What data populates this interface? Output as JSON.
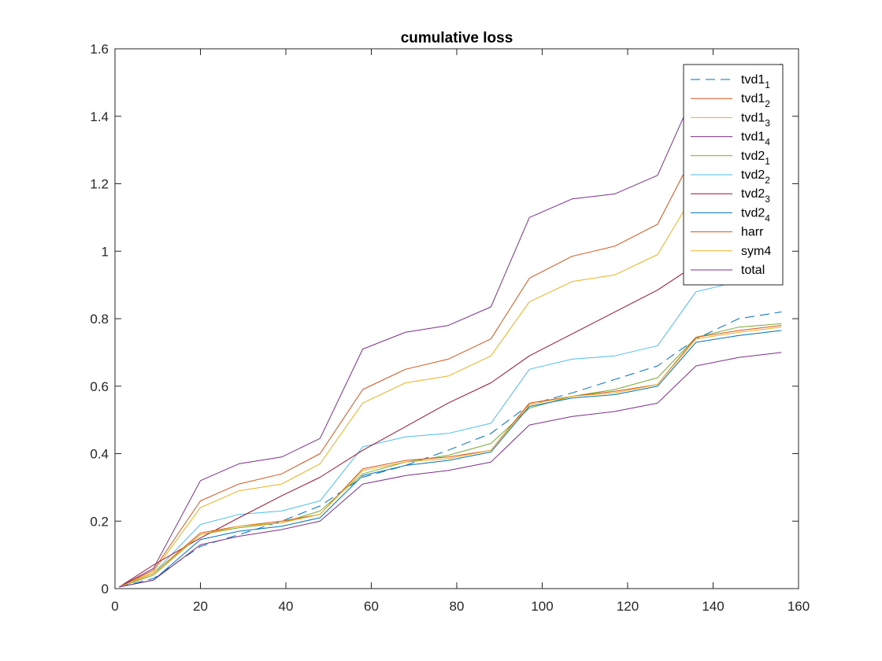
{
  "chart_data": {
    "type": "line",
    "title": "cumulative loss",
    "xlabel": "",
    "ylabel": "",
    "xlim": [
      0,
      160
    ],
    "ylim": [
      0,
      1.6
    ],
    "xticks": [
      0,
      20,
      40,
      60,
      80,
      100,
      120,
      140,
      160
    ],
    "yticks": [
      0,
      0.2,
      0.4,
      0.6,
      0.8,
      1,
      1.2,
      1.4,
      1.6
    ],
    "xtick_labels": [
      "0",
      "20",
      "40",
      "60",
      "80",
      "100",
      "120",
      "140",
      "160"
    ],
    "ytick_labels": [
      "0",
      "0.2",
      "0.4",
      "0.6",
      "0.8",
      "1",
      "1.2",
      "1.4",
      "1.6"
    ],
    "grid": false,
    "legend_position": "top-right",
    "x": [
      1,
      9,
      20,
      29,
      39,
      48,
      58,
      68,
      78,
      88,
      97,
      107,
      117,
      127,
      136,
      146,
      156
    ],
    "series": [
      {
        "label": "tvd1",
        "subscript": "1",
        "color": "#0072BD",
        "dashed": true,
        "values": [
          0.005,
          0.03,
          0.125,
          0.16,
          0.2,
          0.245,
          0.33,
          0.365,
          0.41,
          0.46,
          0.545,
          0.58,
          0.62,
          0.66,
          0.74,
          0.8,
          0.82
        ]
      },
      {
        "label": "tvd1",
        "subscript": "2",
        "color": "#D95319",
        "dashed": false,
        "values": [
          0.005,
          0.055,
          0.26,
          0.31,
          0.34,
          0.4,
          0.59,
          0.65,
          0.68,
          0.74,
          0.92,
          0.985,
          1.015,
          1.08,
          1.3,
          1.33,
          1.36
        ]
      },
      {
        "label": "tvd1",
        "subscript": "3",
        "color": "#EDB120",
        "dashed": false,
        "values": [
          0.005,
          0.05,
          0.24,
          0.29,
          0.31,
          0.37,
          0.55,
          0.61,
          0.63,
          0.69,
          0.85,
          0.91,
          0.93,
          0.99,
          1.18,
          1.21,
          1.24
        ]
      },
      {
        "label": "tvd1",
        "subscript": "4",
        "color": "#7E2F8E",
        "dashed": false,
        "values": [
          0.005,
          0.06,
          0.32,
          0.37,
          0.39,
          0.445,
          0.71,
          0.76,
          0.78,
          0.835,
          1.1,
          1.155,
          1.17,
          1.225,
          1.48,
          1.52,
          1.555
        ]
      },
      {
        "label": "tvd2",
        "subscript": "1",
        "color": "#77AC30",
        "dashed": false,
        "values": [
          0.005,
          0.04,
          0.16,
          0.18,
          0.195,
          0.23,
          0.34,
          0.375,
          0.395,
          0.43,
          0.535,
          0.57,
          0.59,
          0.625,
          0.745,
          0.775,
          0.785
        ]
      },
      {
        "label": "tvd2",
        "subscript": "2",
        "color": "#4DBEEE",
        "dashed": false,
        "values": [
          0.005,
          0.045,
          0.19,
          0.22,
          0.23,
          0.26,
          0.42,
          0.45,
          0.46,
          0.49,
          0.65,
          0.68,
          0.69,
          0.72,
          0.88,
          0.91,
          0.93
        ]
      },
      {
        "label": "tvd2",
        "subscript": "3",
        "color": "#A2142F",
        "dashed": false,
        "values": [
          0.005,
          0.07,
          0.15,
          0.21,
          0.275,
          0.33,
          0.41,
          0.48,
          0.55,
          0.61,
          0.69,
          0.755,
          0.82,
          0.885,
          0.96,
          1.03,
          1.1
        ]
      },
      {
        "label": "tvd2",
        "subscript": "4",
        "color": "#0072BD",
        "dashed": false,
        "values": [
          0.005,
          0.025,
          0.145,
          0.17,
          0.185,
          0.21,
          0.335,
          0.365,
          0.38,
          0.405,
          0.54,
          0.565,
          0.575,
          0.6,
          0.73,
          0.75,
          0.765
        ]
      },
      {
        "label": "harr",
        "subscript": "",
        "color": "#D95319",
        "dashed": false,
        "values": [
          0.005,
          0.045,
          0.165,
          0.185,
          0.2,
          0.22,
          0.355,
          0.38,
          0.39,
          0.41,
          0.55,
          0.57,
          0.585,
          0.605,
          0.745,
          0.765,
          0.78
        ]
      },
      {
        "label": "sym4",
        "subscript": "",
        "color": "#EDB120",
        "dashed": false,
        "values": [
          0.005,
          0.045,
          0.16,
          0.185,
          0.195,
          0.22,
          0.35,
          0.375,
          0.385,
          0.41,
          0.545,
          0.57,
          0.58,
          0.605,
          0.74,
          0.76,
          0.775
        ]
      },
      {
        "label": "total",
        "subscript": "",
        "color": "#7E2F8E",
        "dashed": false,
        "values": [
          0.005,
          0.025,
          0.13,
          0.155,
          0.175,
          0.2,
          0.31,
          0.335,
          0.35,
          0.375,
          0.485,
          0.51,
          0.525,
          0.55,
          0.66,
          0.685,
          0.7
        ]
      }
    ]
  }
}
